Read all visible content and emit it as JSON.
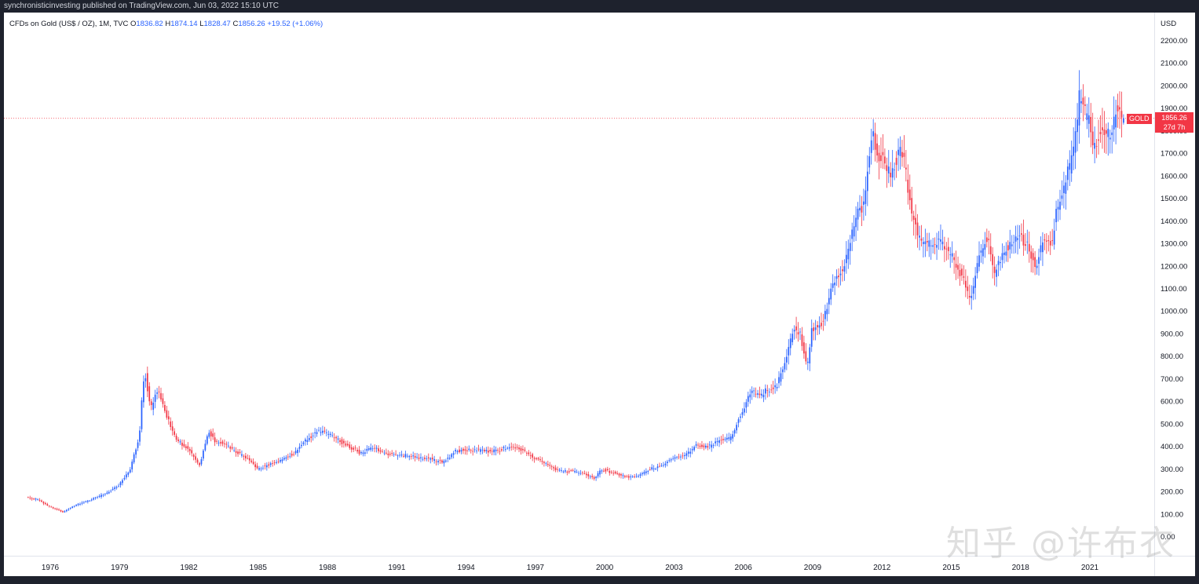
{
  "header": {
    "published": "synchronisticinvesting published on TradingView.com, Jun 03, 2022 15:10 UTC"
  },
  "legend": {
    "symbol": "CFDs on Gold (US$ / OZ), 1M, TVC",
    "open_label": "O",
    "open": "1836.82",
    "high_label": "H",
    "high": "1874.14",
    "low_label": "L",
    "low": "1828.47",
    "close_label": "C",
    "close": "1856.26",
    "change": "+19.52 (+1.06%)"
  },
  "price_label": {
    "tag": "GOLD",
    "price": "1856.26",
    "countdown": "27d 7h"
  },
  "watermark": "知乎 @许布衣",
  "colors": {
    "up": "#2962ff",
    "down": "#f23645",
    "last_price_line": "#f23645"
  },
  "chart_data": {
    "type": "candlestick",
    "currency": "USD",
    "interval": "1M",
    "x_start_year": 1975,
    "y_ticks": [
      "0.00",
      "100.00",
      "200.00",
      "300.00",
      "400.00",
      "500.00",
      "600.00",
      "700.00",
      "800.00",
      "900.00",
      "1000.00",
      "1100.00",
      "1200.00",
      "1300.00",
      "1400.00",
      "1500.00",
      "1600.00",
      "1700.00",
      "1800.00",
      "1900.00",
      "2000.00",
      "2100.00",
      "2200.00"
    ],
    "x_ticks": [
      "1976",
      "1979",
      "1982",
      "1985",
      "1988",
      "1991",
      "1994",
      "1997",
      "2000",
      "2003",
      "2006",
      "2009",
      "2012",
      "2015",
      "2018",
      "2021"
    ],
    "ylim": [
      -40,
      2290
    ],
    "last_price": 1856.26,
    "anchors": [
      [
        1975.0,
        175
      ],
      [
        1975.5,
        165
      ],
      [
        1976.0,
        135
      ],
      [
        1976.6,
        110
      ],
      [
        1977.0,
        135
      ],
      [
        1977.8,
        165
      ],
      [
        1978.5,
        195
      ],
      [
        1979.0,
        230
      ],
      [
        1979.5,
        300
      ],
      [
        1979.9,
        450
      ],
      [
        1980.05,
        680
      ],
      [
        1980.15,
        720
      ],
      [
        1980.4,
        570
      ],
      [
        1980.7,
        660
      ],
      [
        1981.0,
        560
      ],
      [
        1981.5,
        430
      ],
      [
        1982.0,
        390
      ],
      [
        1982.5,
        320
      ],
      [
        1982.9,
        470
      ],
      [
        1983.2,
        420
      ],
      [
        1983.6,
        415
      ],
      [
        1984.0,
        380
      ],
      [
        1984.6,
        345
      ],
      [
        1985.0,
        300
      ],
      [
        1985.5,
        320
      ],
      [
        1986.0,
        340
      ],
      [
        1986.6,
        370
      ],
      [
        1987.0,
        420
      ],
      [
        1987.6,
        470
      ],
      [
        1988.0,
        460
      ],
      [
        1988.5,
        430
      ],
      [
        1989.0,
        400
      ],
      [
        1989.5,
        370
      ],
      [
        1990.0,
        400
      ],
      [
        1990.5,
        370
      ],
      [
        1991.0,
        365
      ],
      [
        1991.5,
        360
      ],
      [
        1992.0,
        350
      ],
      [
        1992.5,
        345
      ],
      [
        1993.0,
        330
      ],
      [
        1993.6,
        380
      ],
      [
        1994.0,
        385
      ],
      [
        1994.5,
        385
      ],
      [
        1995.0,
        380
      ],
      [
        1995.5,
        385
      ],
      [
        1996.0,
        400
      ],
      [
        1996.5,
        385
      ],
      [
        1997.0,
        350
      ],
      [
        1997.6,
        320
      ],
      [
        1998.0,
        295
      ],
      [
        1998.6,
        290
      ],
      [
        1999.0,
        285
      ],
      [
        1999.6,
        260
      ],
      [
        1999.9,
        300
      ],
      [
        2000.4,
        285
      ],
      [
        2001.0,
        265
      ],
      [
        2001.5,
        270
      ],
      [
        2002.0,
        300
      ],
      [
        2002.5,
        315
      ],
      [
        2003.0,
        350
      ],
      [
        2003.5,
        360
      ],
      [
        2004.0,
        405
      ],
      [
        2004.5,
        400
      ],
      [
        2005.0,
        425
      ],
      [
        2005.5,
        440
      ],
      [
        2006.0,
        560
      ],
      [
        2006.4,
        650
      ],
      [
        2006.8,
        620
      ],
      [
        2007.0,
        650
      ],
      [
        2007.5,
        670
      ],
      [
        2007.9,
        800
      ],
      [
        2008.2,
        930
      ],
      [
        2008.5,
        900
      ],
      [
        2008.8,
        750
      ],
      [
        2009.0,
        920
      ],
      [
        2009.5,
        950
      ],
      [
        2009.9,
        1120
      ],
      [
        2010.4,
        1200
      ],
      [
        2010.9,
        1400
      ],
      [
        2011.3,
        1500
      ],
      [
        2011.6,
        1800
      ],
      [
        2011.8,
        1700
      ],
      [
        2012.0,
        1700
      ],
      [
        2012.4,
        1600
      ],
      [
        2012.8,
        1720
      ],
      [
        2013.0,
        1670
      ],
      [
        2013.3,
        1450
      ],
      [
        2013.6,
        1330
      ],
      [
        2014.0,
        1300
      ],
      [
        2014.5,
        1310
      ],
      [
        2015.0,
        1260
      ],
      [
        2015.5,
        1150
      ],
      [
        2015.9,
        1060
      ],
      [
        2016.2,
        1230
      ],
      [
        2016.6,
        1330
      ],
      [
        2016.9,
        1170
      ],
      [
        2017.3,
        1260
      ],
      [
        2017.7,
        1300
      ],
      [
        2018.0,
        1330
      ],
      [
        2018.3,
        1300
      ],
      [
        2018.7,
        1200
      ],
      [
        2019.0,
        1310
      ],
      [
        2019.4,
        1300
      ],
      [
        2019.6,
        1450
      ],
      [
        2020.0,
        1580
      ],
      [
        2020.3,
        1700
      ],
      [
        2020.6,
        1950
      ],
      [
        2020.8,
        1880
      ],
      [
        2021.0,
        1850
      ],
      [
        2021.2,
        1720
      ],
      [
        2021.5,
        1800
      ],
      [
        2021.8,
        1780
      ],
      [
        2022.0,
        1800
      ],
      [
        2022.2,
        1900
      ],
      [
        2022.42,
        1856.26
      ]
    ]
  }
}
